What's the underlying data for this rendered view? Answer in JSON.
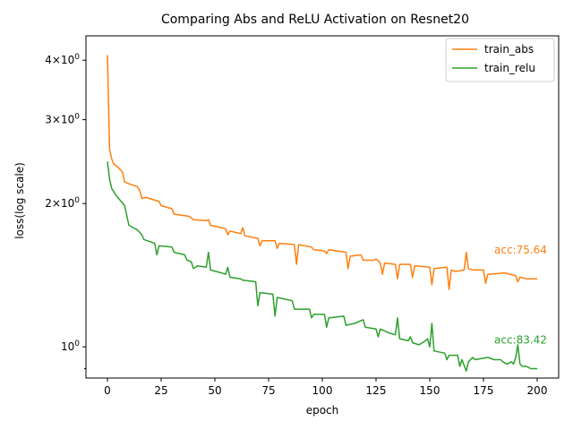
{
  "chart_data": {
    "type": "line",
    "title": "Comparing Abs and ReLU Activation on Resnet20",
    "xlabel": "epoch",
    "ylabel": "loss(log scale)",
    "y_scale": "log",
    "xlim": [
      -10,
      210
    ],
    "ylim": [
      0.86,
      4.5
    ],
    "xticks": [
      0,
      25,
      50,
      75,
      100,
      125,
      150,
      175,
      200
    ],
    "yticks": [
      {
        "value": 1.0,
        "label": "10^0"
      },
      {
        "value": 2.0,
        "label": "2×10^0"
      },
      {
        "value": 3.0,
        "label": "3×10^0"
      },
      {
        "value": 4.0,
        "label": "4×10^0"
      }
    ],
    "grid": false,
    "legend_position": "top-right",
    "series": [
      {
        "name": "train_abs",
        "color": "#ff7f0e",
        "points": [
          [
            0,
            4.1
          ],
          [
            1,
            2.6
          ],
          [
            2,
            2.48
          ],
          [
            3,
            2.42
          ],
          [
            5,
            2.38
          ],
          [
            7,
            2.33
          ],
          [
            8,
            2.22
          ],
          [
            10,
            2.2
          ],
          [
            14,
            2.17
          ],
          [
            15,
            2.13
          ],
          [
            16,
            2.05
          ],
          [
            18,
            2.06
          ],
          [
            24,
            2.02
          ],
          [
            25,
            1.98
          ],
          [
            30,
            1.95
          ],
          [
            31,
            1.9
          ],
          [
            38,
            1.88
          ],
          [
            40,
            1.85
          ],
          [
            46,
            1.84
          ],
          [
            47,
            1.85
          ],
          [
            48,
            1.8
          ],
          [
            53,
            1.78
          ],
          [
            55,
            1.77
          ],
          [
            56,
            1.72
          ],
          [
            57,
            1.75
          ],
          [
            62,
            1.73
          ],
          [
            63,
            1.78
          ],
          [
            64,
            1.71
          ],
          [
            70,
            1.69
          ],
          [
            71,
            1.63
          ],
          [
            72,
            1.67
          ],
          [
            78,
            1.67
          ],
          [
            79,
            1.61
          ],
          [
            80,
            1.65
          ],
          [
            87,
            1.64
          ],
          [
            88,
            1.49
          ],
          [
            89,
            1.64
          ],
          [
            95,
            1.62
          ],
          [
            96,
            1.6
          ],
          [
            101,
            1.59
          ],
          [
            102,
            1.57
          ],
          [
            103,
            1.6
          ],
          [
            111,
            1.58
          ],
          [
            112,
            1.46
          ],
          [
            113,
            1.55
          ],
          [
            118,
            1.56
          ],
          [
            119,
            1.52
          ],
          [
            124,
            1.52
          ],
          [
            125,
            1.53
          ],
          [
            127,
            1.5
          ],
          [
            128,
            1.42
          ],
          [
            129,
            1.5
          ],
          [
            134,
            1.49
          ],
          [
            135,
            1.39
          ],
          [
            136,
            1.49
          ],
          [
            141,
            1.49
          ],
          [
            142,
            1.4
          ],
          [
            143,
            1.48
          ],
          [
            150,
            1.47
          ],
          [
            151,
            1.35
          ],
          [
            152,
            1.46
          ],
          [
            158,
            1.47
          ],
          [
            159,
            1.32
          ],
          [
            160,
            1.45
          ],
          [
            162,
            1.44
          ],
          [
            166,
            1.45
          ],
          [
            167,
            1.58
          ],
          [
            168,
            1.46
          ],
          [
            170,
            1.45
          ],
          [
            175,
            1.45
          ],
          [
            176,
            1.36
          ],
          [
            177,
            1.42
          ],
          [
            185,
            1.43
          ],
          [
            190,
            1.41
          ],
          [
            191,
            1.37
          ],
          [
            192,
            1.4
          ],
          [
            195,
            1.39
          ],
          [
            196,
            1.39
          ],
          [
            200,
            1.39
          ]
        ],
        "annotation": "acc:75.64"
      },
      {
        "name": "train_relu",
        "color": "#2ca02c",
        "points": [
          [
            0,
            2.45
          ],
          [
            1,
            2.25
          ],
          [
            2,
            2.15
          ],
          [
            4,
            2.08
          ],
          [
            6,
            2.03
          ],
          [
            8,
            1.98
          ],
          [
            10,
            1.8
          ],
          [
            12,
            1.78
          ],
          [
            14,
            1.76
          ],
          [
            16,
            1.72
          ],
          [
            17,
            1.68
          ],
          [
            22,
            1.65
          ],
          [
            23,
            1.56
          ],
          [
            24,
            1.63
          ],
          [
            30,
            1.62
          ],
          [
            31,
            1.58
          ],
          [
            36,
            1.56
          ],
          [
            37,
            1.52
          ],
          [
            39,
            1.51
          ],
          [
            40,
            1.46
          ],
          [
            42,
            1.48
          ],
          [
            46,
            1.47
          ],
          [
            47,
            1.58
          ],
          [
            48,
            1.45
          ],
          [
            53,
            1.43
          ],
          [
            55,
            1.42
          ],
          [
            56,
            1.47
          ],
          [
            57,
            1.4
          ],
          [
            62,
            1.39
          ],
          [
            63,
            1.38
          ],
          [
            69,
            1.37
          ],
          [
            70,
            1.22
          ],
          [
            71,
            1.3
          ],
          [
            77,
            1.29
          ],
          [
            78,
            1.16
          ],
          [
            79,
            1.27
          ],
          [
            86,
            1.25
          ],
          [
            87,
            1.2
          ],
          [
            94,
            1.2
          ],
          [
            95,
            1.15
          ],
          [
            96,
            1.17
          ],
          [
            101,
            1.17
          ],
          [
            102,
            1.1
          ],
          [
            103,
            1.15
          ],
          [
            110,
            1.16
          ],
          [
            111,
            1.11
          ],
          [
            115,
            1.12
          ],
          [
            119,
            1.14
          ],
          [
            120,
            1.1
          ],
          [
            125,
            1.09
          ],
          [
            126,
            1.05
          ],
          [
            127,
            1.09
          ],
          [
            131,
            1.07
          ],
          [
            134,
            1.06
          ],
          [
            135,
            1.15
          ],
          [
            136,
            1.04
          ],
          [
            140,
            1.03
          ],
          [
            141,
            1.05
          ],
          [
            142,
            1.02
          ],
          [
            145,
            1.01
          ],
          [
            148,
            1.03
          ],
          [
            149,
            1.04
          ],
          [
            150,
            1.0
          ],
          [
            151,
            1.12
          ],
          [
            152,
            0.98
          ],
          [
            157,
            0.97
          ],
          [
            158,
            0.94
          ],
          [
            159,
            0.96
          ],
          [
            163,
            0.96
          ],
          [
            164,
            0.91
          ],
          [
            165,
            0.94
          ],
          [
            167,
            0.89
          ],
          [
            168,
            0.93
          ],
          [
            170,
            0.95
          ],
          [
            171,
            0.94
          ],
          [
            177,
            0.95
          ],
          [
            180,
            0.94
          ],
          [
            183,
            0.94
          ],
          [
            184,
            0.93
          ],
          [
            186,
            0.92
          ],
          [
            188,
            0.93
          ],
          [
            189,
            0.92
          ],
          [
            190,
            0.95
          ],
          [
            191,
            1.01
          ],
          [
            192,
            0.92
          ],
          [
            193,
            0.91
          ],
          [
            195,
            0.91
          ],
          [
            197,
            0.9
          ],
          [
            200,
            0.9
          ]
        ],
        "annotation": "acc:83.42"
      }
    ]
  }
}
